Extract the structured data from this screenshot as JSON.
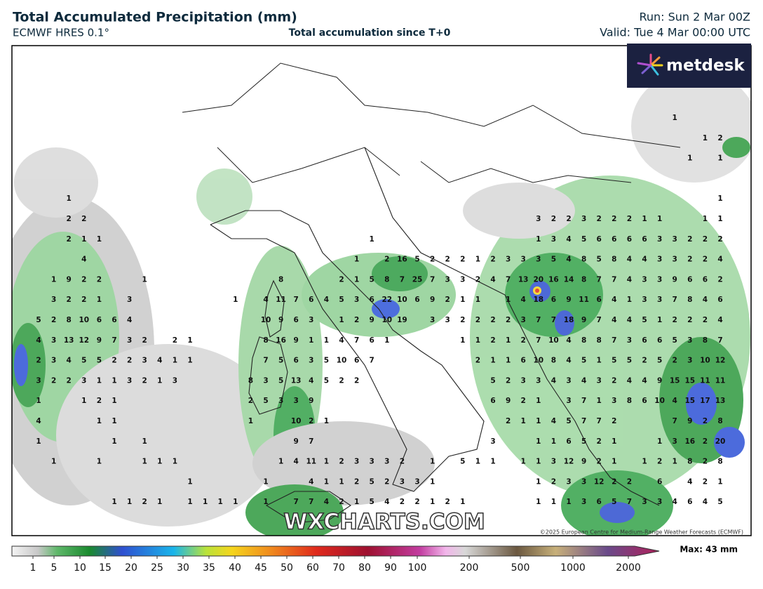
{
  "header": {
    "title": "Total Accumulated Precipitation (mm)",
    "model": "ECMWF HRES 0.1°",
    "description": "Total accumulation since T+0",
    "run": "Run: Sun 2 Mar 00Z",
    "valid": "Valid: Tue 4 Mar 00:00 UTC"
  },
  "logo": "metdesk",
  "watermark": "WXCHARTS.COM",
  "copyright": "©2025 European Centre for Medium-Range Weather Forecasts (ECMWF)",
  "legend": {
    "ticks": [
      1,
      5,
      10,
      15,
      20,
      25,
      30,
      35,
      40,
      45,
      50,
      60,
      70,
      80,
      90,
      100,
      200,
      500,
      1000,
      2000
    ],
    "max": "Max: 43 mm"
  },
  "grid": {
    "rows": [
      [
        null,
        null,
        null,
        null,
        null,
        null,
        null,
        null,
        null,
        null,
        null,
        null,
        null,
        null,
        null,
        null,
        null,
        null,
        null,
        null,
        null,
        null,
        null,
        null,
        null,
        null,
        null,
        null,
        null,
        null,
        null,
        null,
        null,
        null,
        null,
        null,
        null,
        null,
        null,
        null,
        null,
        null,
        1,
        null,
        null,
        null,
        null
      ],
      [
        null,
        null,
        null,
        null,
        null,
        null,
        null,
        null,
        null,
        null,
        null,
        null,
        null,
        null,
        null,
        null,
        null,
        null,
        null,
        null,
        null,
        null,
        null,
        null,
        null,
        null,
        null,
        null,
        null,
        null,
        null,
        null,
        null,
        null,
        null,
        null,
        null,
        null,
        null,
        null,
        null,
        null,
        null,
        null,
        1,
        2,
        null
      ],
      [
        null,
        null,
        null,
        null,
        null,
        null,
        null,
        null,
        null,
        null,
        null,
        null,
        null,
        null,
        null,
        null,
        null,
        null,
        null,
        null,
        null,
        null,
        null,
        null,
        null,
        null,
        null,
        null,
        null,
        null,
        null,
        null,
        null,
        null,
        null,
        null,
        null,
        null,
        null,
        null,
        null,
        null,
        null,
        1,
        null,
        1,
        null
      ],
      [
        null,
        null,
        null,
        null,
        null,
        null,
        null,
        null,
        null,
        null,
        null,
        null,
        null,
        null,
        null,
        null,
        null,
        null,
        null,
        null,
        null,
        null,
        null,
        null,
        null,
        null,
        null,
        null,
        null,
        null,
        null,
        null,
        null,
        null,
        null,
        null,
        null,
        null,
        null,
        null,
        null,
        null,
        null,
        null,
        null,
        null,
        null
      ],
      [
        null,
        null,
        1,
        null,
        null,
        null,
        null,
        null,
        null,
        null,
        null,
        null,
        null,
        null,
        null,
        null,
        null,
        null,
        null,
        null,
        null,
        null,
        null,
        null,
        null,
        null,
        null,
        null,
        null,
        null,
        null,
        null,
        null,
        null,
        null,
        null,
        null,
        null,
        null,
        null,
        null,
        null,
        null,
        null,
        null,
        1,
        null
      ],
      [
        null,
        null,
        2,
        2,
        null,
        null,
        null,
        null,
        null,
        null,
        null,
        null,
        null,
        null,
        null,
        null,
        null,
        null,
        null,
        null,
        null,
        null,
        null,
        null,
        null,
        null,
        null,
        null,
        null,
        null,
        null,
        null,
        null,
        3,
        2,
        2,
        3,
        2,
        2,
        2,
        1,
        1,
        null,
        null,
        1,
        1,
        null
      ],
      [
        null,
        null,
        2,
        1,
        1,
        null,
        null,
        null,
        null,
        null,
        null,
        null,
        null,
        null,
        null,
        null,
        null,
        null,
        null,
        null,
        null,
        null,
        1,
        null,
        null,
        null,
        null,
        null,
        null,
        null,
        null,
        null,
        null,
        1,
        3,
        4,
        5,
        6,
        6,
        6,
        6,
        3,
        3,
        2,
        2,
        2,
        null
      ],
      [
        null,
        null,
        null,
        4,
        null,
        null,
        null,
        null,
        null,
        null,
        null,
        null,
        null,
        null,
        null,
        null,
        null,
        null,
        null,
        null,
        null,
        1,
        null,
        2,
        16,
        5,
        2,
        2,
        2,
        1,
        2,
        3,
        3,
        3,
        5,
        4,
        8,
        5,
        8,
        4,
        4,
        3,
        3,
        2,
        2,
        4,
        null
      ],
      [
        null,
        1,
        9,
        2,
        2,
        null,
        null,
        1,
        null,
        null,
        null,
        null,
        null,
        null,
        null,
        null,
        8,
        null,
        null,
        null,
        2,
        1,
        5,
        8,
        7,
        25,
        7,
        3,
        3,
        2,
        4,
        7,
        13,
        20,
        16,
        14,
        8,
        7,
        7,
        4,
        3,
        3,
        9,
        6,
        6,
        2,
        null
      ],
      [
        null,
        3,
        2,
        2,
        1,
        null,
        3,
        null,
        null,
        null,
        null,
        null,
        null,
        1,
        null,
        4,
        11,
        7,
        6,
        4,
        5,
        3,
        6,
        22,
        10,
        6,
        9,
        2,
        1,
        1,
        null,
        1,
        4,
        18,
        6,
        9,
        11,
        6,
        4,
        1,
        3,
        3,
        7,
        8,
        4,
        6,
        null
      ],
      [
        5,
        2,
        8,
        10,
        6,
        6,
        4,
        null,
        null,
        null,
        null,
        null,
        null,
        null,
        null,
        10,
        9,
        6,
        3,
        null,
        1,
        2,
        9,
        10,
        19,
        null,
        3,
        3,
        2,
        2,
        2,
        2,
        3,
        7,
        7,
        18,
        9,
        7,
        4,
        4,
        5,
        1,
        2,
        2,
        2,
        4,
        null
      ],
      [
        4,
        3,
        13,
        12,
        9,
        7,
        3,
        2,
        null,
        2,
        1,
        null,
        null,
        null,
        null,
        8,
        16,
        9,
        1,
        1,
        4,
        7,
        6,
        1,
        null,
        null,
        null,
        null,
        1,
        1,
        2,
        1,
        2,
        7,
        10,
        4,
        8,
        8,
        7,
        3,
        6,
        6,
        5,
        3,
        8,
        7,
        null
      ],
      [
        2,
        3,
        4,
        5,
        5,
        2,
        2,
        3,
        4,
        1,
        1,
        null,
        null,
        null,
        null,
        7,
        5,
        6,
        3,
        5,
        10,
        6,
        7,
        null,
        null,
        null,
        null,
        null,
        null,
        2,
        1,
        1,
        6,
        10,
        8,
        4,
        5,
        1,
        5,
        5,
        2,
        5,
        2,
        3,
        10,
        12,
        null
      ],
      [
        3,
        2,
        2,
        3,
        1,
        1,
        3,
        2,
        1,
        3,
        null,
        null,
        null,
        null,
        8,
        3,
        5,
        13,
        4,
        5,
        2,
        2,
        null,
        null,
        null,
        null,
        null,
        null,
        null,
        null,
        5,
        2,
        3,
        3,
        4,
        3,
        4,
        3,
        2,
        4,
        4,
        9,
        15,
        15,
        11,
        11,
        null
      ],
      [
        1,
        null,
        null,
        1,
        2,
        1,
        null,
        null,
        null,
        null,
        null,
        null,
        null,
        null,
        2,
        5,
        3,
        3,
        9,
        null,
        null,
        null,
        null,
        null,
        null,
        null,
        null,
        null,
        null,
        null,
        6,
        9,
        2,
        1,
        null,
        3,
        7,
        1,
        3,
        8,
        6,
        10,
        4,
        15,
        17,
        13,
        null
      ],
      [
        4,
        null,
        null,
        null,
        1,
        1,
        null,
        null,
        null,
        null,
        null,
        null,
        null,
        null,
        1,
        null,
        null,
        10,
        2,
        1,
        null,
        null,
        null,
        null,
        null,
        null,
        null,
        null,
        null,
        null,
        null,
        2,
        1,
        1,
        4,
        5,
        7,
        7,
        2,
        null,
        null,
        null,
        7,
        9,
        2,
        8,
        null
      ],
      [
        1,
        null,
        null,
        null,
        null,
        1,
        null,
        1,
        null,
        null,
        null,
        null,
        null,
        null,
        null,
        null,
        null,
        9,
        7,
        null,
        null,
        null,
        null,
        null,
        null,
        null,
        null,
        null,
        null,
        null,
        3,
        null,
        null,
        1,
        1,
        6,
        5,
        2,
        1,
        null,
        null,
        1,
        3,
        16,
        2,
        20,
        null
      ],
      [
        null,
        1,
        null,
        null,
        1,
        null,
        null,
        1,
        1,
        1,
        null,
        null,
        null,
        null,
        null,
        null,
        1,
        4,
        11,
        1,
        2,
        3,
        3,
        3,
        2,
        null,
        1,
        null,
        5,
        1,
        1,
        null,
        1,
        1,
        3,
        12,
        9,
        2,
        1,
        null,
        1,
        2,
        1,
        8,
        2,
        8,
        null
      ],
      [
        null,
        null,
        null,
        null,
        null,
        null,
        null,
        null,
        null,
        null,
        1,
        null,
        null,
        null,
        null,
        1,
        null,
        null,
        4,
        1,
        1,
        2,
        5,
        2,
        3,
        3,
        1,
        null,
        null,
        null,
        null,
        null,
        null,
        1,
        2,
        3,
        3,
        12,
        2,
        2,
        null,
        6,
        null,
        4,
        2,
        1,
        null
      ],
      [
        null,
        null,
        null,
        null,
        null,
        1,
        1,
        2,
        1,
        null,
        1,
        1,
        1,
        1,
        null,
        1,
        null,
        7,
        7,
        4,
        2,
        1,
        5,
        4,
        2,
        2,
        1,
        2,
        1,
        null,
        null,
        null,
        null,
        1,
        1,
        1,
        3,
        6,
        5,
        7,
        3,
        3,
        4,
        6,
        4,
        5,
        null
      ]
    ]
  }
}
